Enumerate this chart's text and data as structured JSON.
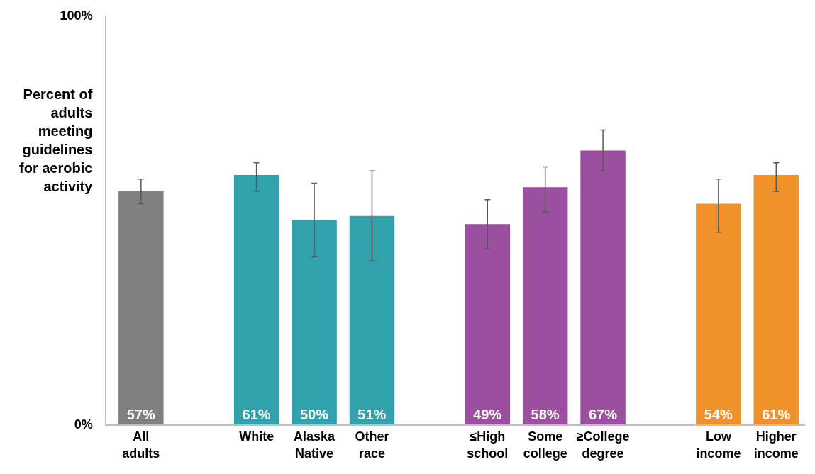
{
  "chart_data": {
    "type": "bar",
    "ylabel": "Percent of adults meeting guidelines for aerobic activity",
    "categories": [
      "All adults",
      null,
      "White",
      "Alaska Native",
      "Other race",
      null,
      "≤High school",
      "Some college",
      "≥College degree",
      null,
      "Low income",
      "Higher income"
    ],
    "values": [
      57,
      null,
      61,
      50,
      51,
      null,
      49,
      58,
      67,
      null,
      54,
      61
    ],
    "colors": [
      "#808080",
      null,
      "#31a1ac",
      "#31a1ac",
      "#31a1ac",
      null,
      "#9b4f9f",
      "#9b4f9f",
      "#9b4f9f",
      null,
      "#f0922b",
      "#f0922b"
    ],
    "errors": [
      [
        54,
        60
      ],
      null,
      [
        57,
        64
      ],
      [
        41,
        59
      ],
      [
        40,
        62
      ],
      null,
      [
        43,
        55
      ],
      [
        52,
        63
      ],
      [
        62,
        72
      ],
      null,
      [
        47,
        60
      ],
      [
        57,
        64
      ]
    ],
    "value_labels": [
      "57%",
      null,
      "61%",
      "50%",
      "51%",
      null,
      "49%",
      "58%",
      "67%",
      null,
      "54%",
      "61%"
    ],
    "ylim": [
      0,
      100
    ],
    "yticks": [
      {
        "value": 0,
        "label": "0%"
      },
      {
        "value": 100,
        "label": "100%"
      }
    ],
    "grid": false
  }
}
